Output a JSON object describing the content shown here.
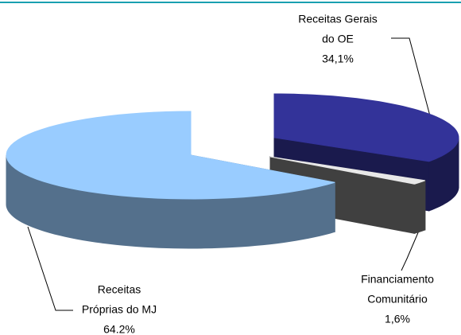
{
  "chart_data": {
    "type": "pie3d",
    "categories": [
      [
        "Receitas Gerais",
        "do OE"
      ],
      [
        "Financiamento",
        "Comunitário"
      ],
      [
        "Receitas",
        "Próprias do MJ"
      ]
    ],
    "values": [
      34.1,
      1.6,
      64.2
    ],
    "value_labels": [
      "34,1%",
      "1,6%",
      "64.2%"
    ],
    "colors": [
      "#333399",
      "#808080",
      "#99ccff"
    ]
  }
}
